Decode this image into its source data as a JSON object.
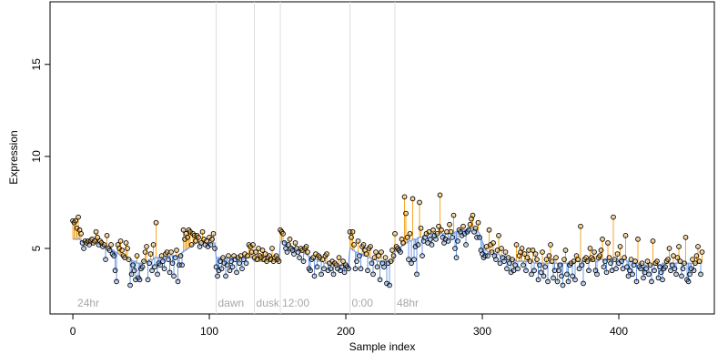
{
  "chart_data": {
    "type": "line",
    "xlabel": "Sample index",
    "ylabel": "Expression",
    "xlim": [
      -16.7,
      470
    ],
    "ylim": [
      1.44,
      18.4
    ],
    "xticks": [
      0,
      100,
      200,
      300,
      400
    ],
    "yticks": [
      5,
      10,
      15
    ],
    "above_color": "#f5a623",
    "below_color": "#6f9de8",
    "line_color": "#6f9de8",
    "vlines": [
      105,
      133,
      152,
      203,
      236
    ],
    "annotations": [
      {
        "label": "24hr",
        "x": 2
      },
      {
        "label": "dawn",
        "x": 105
      },
      {
        "label": "dusk",
        "x": 133
      },
      {
        "label": "12:00",
        "x": 152
      },
      {
        "label": "0:00",
        "x": 203
      },
      {
        "label": "48hr",
        "x": 236
      }
    ],
    "series": [
      {
        "values": [
          6.5,
          6.4,
          6.5,
          6.1,
          6.7,
          6.0,
          5.8,
          5.3,
          5.0,
          5.4,
          5.3,
          5.4,
          5.2,
          5.4,
          5.5,
          5.3,
          5.4,
          5.9,
          5.6,
          5.2,
          5.4,
          5.3,
          5.1,
          5.2,
          4.4,
          5.7,
          5.0,
          4.9,
          5.2,
          4.7,
          4.6,
          3.8,
          3.2,
          5.2,
          5.0,
          5.4,
          4.9,
          4.6,
          4.5,
          5.3,
          5.0,
          4.4,
          3.0,
          3.6,
          4.1,
          3.8,
          3.3,
          4.6,
          3.4,
          3.3,
          3.9,
          4.0,
          4.3,
          4.8,
          5.1,
          3.3,
          4.2,
          4.7,
          3.8,
          5.2,
          4.0,
          6.4,
          3.6,
          4.2,
          4.1,
          4.6,
          4.3,
          3.9,
          4.7,
          4.8,
          4.4,
          3.7,
          4.8,
          4.2,
          3.5,
          4.5,
          4.9,
          3.2,
          4.1,
          4.6,
          4.1,
          6.0,
          5.5,
          5.8,
          5.6,
          6.0,
          5.9,
          5.2,
          5.8,
          5.7,
          5.4,
          5.7,
          5.6,
          5.1,
          5.3,
          5.9,
          5.5,
          5.2,
          5.4,
          5.1,
          5.6,
          5.2,
          5.5,
          5.8,
          5.0,
          4.0,
          3.5,
          3.8,
          4.3,
          3.9,
          4.5,
          4.2,
          3.5,
          4.1,
          4.6,
          3.8,
          4.3,
          4.0,
          4.6,
          4.4,
          3.7,
          4.5,
          4.2,
          4.6,
          3.9,
          4.4,
          4.7,
          4.2,
          4.6,
          5.2,
          5.1,
          4.8,
          5.2,
          4.5,
          4.8,
          4.4,
          5.0,
          4.6,
          4.5,
          4.9,
          4.4,
          4.7,
          4.3,
          4.5,
          4.6,
          4.4,
          5.0,
          4.3,
          4.5,
          4.6,
          4.4,
          4.3,
          6.0,
          5.9,
          5.8,
          5.3,
          5.0,
          4.8,
          5.2,
          5.5,
          5.0,
          4.9,
          4.7,
          5.3,
          5.0,
          4.8,
          4.5,
          5.0,
          4.9,
          4.3,
          5.0,
          5.1,
          4.8,
          3.9,
          3.8,
          4.4,
          4.5,
          3.5,
          4.7,
          4.0,
          4.6,
          4.5,
          3.6,
          4.4,
          3.9,
          4.6,
          4.7,
          3.8,
          4.2,
          3.9,
          4.3,
          3.6,
          4.2,
          4.1,
          3.9,
          4.5,
          3.8,
          4.0,
          4.3,
          3.7,
          4.1,
          4.0,
          3.9,
          5.9,
          5.6,
          5.9,
          5.2,
          3.9,
          4.3,
          5.4,
          4.6,
          3.9,
          5.1,
          5.2,
          4.9,
          4.7,
          3.8,
          5.0,
          5.1,
          4.2,
          3.6,
          4.5,
          4.8,
          4.0,
          4.6,
          3.3,
          4.8,
          4.2,
          4.0,
          4.5,
          3.1,
          4.2,
          3.0,
          4.3,
          4.9,
          4.6,
          5.8,
          5.1,
          5.0,
          4.9,
          4.8,
          5.5,
          5.3,
          7.8,
          6.9,
          5.6,
          4.4,
          5.8,
          4.2,
          7.7,
          4.4,
          5.1,
          3.6,
          5.2,
          7.5,
          6.1,
          4.6,
          5.4,
          5.6,
          5.8,
          5.3,
          5.9,
          5.5,
          5.2,
          6.0,
          5.7,
          5.5,
          5.8,
          6.2,
          7.9,
          6.0,
          5.6,
          5.3,
          5.5,
          5.9,
          5.4,
          6.3,
          5.9,
          5.6,
          6.8,
          5.0,
          4.5,
          5.4,
          6.0,
          5.9,
          5.7,
          6.2,
          5.8,
          5.2,
          5.9,
          6.0,
          6.3,
          6.6,
          6.8,
          5.9,
          6.1,
          5.6,
          6.4,
          5.6,
          4.9,
          4.7,
          4.5,
          4.6,
          5.1,
          4.6,
          6.0,
          5.2,
          4.8,
          5.3,
          4.6,
          4.4,
          4.9,
          5.7,
          4.2,
          5.0,
          4.5,
          4.3,
          4.8,
          3.9,
          4.5,
          4.2,
          3.7,
          4.4,
          3.8,
          4.1,
          5.2,
          3.9,
          4.6,
          4.8,
          5.0,
          4.1,
          4.7,
          3.8,
          4.5,
          4.9,
          4.3,
          3.6,
          4.9,
          3.8,
          4.7,
          4.4,
          3.3,
          4.1,
          3.7,
          4.8,
          3.5,
          4.0,
          4.4,
          3.2,
          4.6,
          5.2,
          4.3,
          3.4,
          3.8,
          4.5,
          3.2,
          3.8,
          4.1,
          3.5,
          3.0,
          4.4,
          4.9,
          3.6,
          3.2,
          4.1,
          4.2,
          3.5,
          4.3,
          3.3,
          4.6,
          4.4,
          3.9,
          6.2,
          4.1,
          3.1,
          4.4,
          4.5,
          4.3,
          3.8,
          5.0,
          4.5,
          4.4,
          4.8,
          3.8,
          3.6,
          4.5,
          4.6,
          4.9,
          5.5,
          4.0,
          4.3,
          3.7,
          5.3,
          4.5,
          4.2,
          3.8,
          6.7,
          4.4,
          3.9,
          4.7,
          4.2,
          5.1,
          4.3,
          3.9,
          4.5,
          5.7,
          4.0,
          3.5,
          3.8,
          4.4,
          3.6,
          4.1,
          4.3,
          3.2,
          5.5,
          4.0,
          3.9,
          4.2,
          3.4,
          3.7,
          3.9,
          4.3,
          3.6,
          4.1,
          3.2,
          5.4,
          3.8,
          4.2,
          4.3,
          3.4,
          4.0,
          3.7,
          3.3,
          3.9,
          4.0,
          4.3,
          4.4,
          5.0,
          3.8,
          4.1,
          4.6,
          3.9,
          3.6,
          4.5,
          5.1,
          4.3,
          3.5,
          3.9,
          4.2,
          5.6,
          3.3,
          3.2,
          3.6,
          3.9,
          4.4,
          3.8,
          4.2,
          4.6,
          5.1,
          4.3,
          3.6,
          4.8
        ]
      },
      {
        "values": [
          5.5,
          5.5,
          5.5,
          5.5,
          5.5,
          5.5,
          5.4,
          5.4,
          5.3,
          5.3,
          5.3,
          5.3,
          5.3,
          5.3,
          5.3,
          5.3,
          5.3,
          5.3,
          5.3,
          5.3,
          5.2,
          5.2,
          5.2,
          5.1,
          5.1,
          5.1,
          5.0,
          5.0,
          5.0,
          4.9,
          4.9,
          4.8,
          4.8,
          4.7,
          4.7,
          4.6,
          4.6,
          4.6,
          4.5,
          4.5,
          4.5,
          4.4,
          4.4,
          4.4,
          4.3,
          4.3,
          4.3,
          4.2,
          4.2,
          4.2,
          4.2,
          4.2,
          4.3,
          4.3,
          4.3,
          4.3,
          4.4,
          4.4,
          4.4,
          4.4,
          4.5,
          4.5,
          4.5,
          4.5,
          4.5,
          4.5,
          4.5,
          4.5,
          4.5,
          4.5,
          4.6,
          4.6,
          4.6,
          4.6,
          4.6,
          4.6,
          4.6,
          4.6,
          4.6,
          4.6,
          4.8,
          4.8,
          4.9,
          4.9,
          5.0,
          5.0,
          5.1,
          5.1,
          5.2,
          5.2,
          5.3,
          5.3,
          5.3,
          5.3,
          5.3,
          5.3,
          5.3,
          5.3,
          5.3,
          5.3,
          5.3,
          5.3,
          5.3,
          5.3,
          5.3,
          4.5,
          4.5,
          4.5,
          4.5,
          4.5,
          4.5,
          4.5,
          4.5,
          4.5,
          4.5,
          4.5,
          4.5,
          4.5,
          4.5,
          4.5,
          4.5,
          4.5,
          4.5,
          4.5,
          4.5,
          4.5,
          4.5,
          4.5,
          4.5,
          4.5,
          4.5,
          4.5,
          4.5,
          4.3,
          4.3,
          4.3,
          4.3,
          4.3,
          4.3,
          4.3,
          4.3,
          4.3,
          4.3,
          4.3,
          4.3,
          4.3,
          4.3,
          4.3,
          4.3,
          4.3,
          4.3,
          4.3,
          5.3,
          5.4,
          5.4,
          5.4,
          5.3,
          5.3,
          5.2,
          5.2,
          5.1,
          5.1,
          5.0,
          5.0,
          5.0,
          4.9,
          4.9,
          4.9,
          4.8,
          4.8,
          4.7,
          4.7,
          4.6,
          4.6,
          4.5,
          4.5,
          4.5,
          4.4,
          4.4,
          4.4,
          4.3,
          4.3,
          4.3,
          4.3,
          4.2,
          4.2,
          4.2,
          4.2,
          4.1,
          4.1,
          4.1,
          4.1,
          4.1,
          4.1,
          4.1,
          4.1,
          4.1,
          4.1,
          4.1,
          4.1,
          4.1,
          4.1,
          4.1,
          5.0,
          5.0,
          4.9,
          4.9,
          4.8,
          4.8,
          4.8,
          4.7,
          4.7,
          4.7,
          4.6,
          4.6,
          4.6,
          4.5,
          4.5,
          4.5,
          4.4,
          4.4,
          4.4,
          4.4,
          4.3,
          4.3,
          4.3,
          4.3,
          4.3,
          4.3,
          4.3,
          4.3,
          4.3,
          4.3,
          4.3,
          4.3,
          4.3,
          4.8,
          4.9,
          5.0,
          5.0,
          5.1,
          5.1,
          5.2,
          5.2,
          5.3,
          5.3,
          5.4,
          5.4,
          5.4,
          5.5,
          5.5,
          5.5,
          5.5,
          5.6,
          5.6,
          5.6,
          5.6,
          5.7,
          5.7,
          5.7,
          5.7,
          5.8,
          5.8,
          5.8,
          5.8,
          5.8,
          5.8,
          5.8,
          5.8,
          5.8,
          5.8,
          5.8,
          5.8,
          5.8,
          5.8,
          5.8,
          5.8,
          5.8,
          5.8,
          5.8,
          5.9,
          5.9,
          5.9,
          5.9,
          6.0,
          6.0,
          6.0,
          6.0,
          6.0,
          6.0,
          6.1,
          6.1,
          6.1,
          6.1,
          6.1,
          6.1,
          6.0,
          5.9,
          5.8,
          5.6,
          5.4,
          5.2,
          5.0,
          4.9,
          4.8,
          4.8,
          4.8,
          4.8,
          4.8,
          4.7,
          4.7,
          4.7,
          4.7,
          4.6,
          4.6,
          4.6,
          4.6,
          4.5,
          4.5,
          4.5,
          4.5,
          4.4,
          4.4,
          4.4,
          4.4,
          4.3,
          4.3,
          4.3,
          4.3,
          4.3,
          4.3,
          4.3,
          4.3,
          4.3,
          4.3,
          4.3,
          4.3,
          4.3,
          4.2,
          4.2,
          4.2,
          4.2,
          4.2,
          4.2,
          4.2,
          4.2,
          4.2,
          4.2,
          4.2,
          4.2,
          4.2,
          4.2,
          4.2,
          4.2,
          4.2,
          4.2,
          4.2,
          4.2,
          4.2,
          4.2,
          4.2,
          4.2,
          4.2,
          4.2,
          4.2,
          4.2,
          4.2,
          4.2,
          4.3,
          4.3,
          4.3,
          4.3,
          4.3,
          4.3,
          4.3,
          4.3,
          4.3,
          4.3,
          4.3,
          4.3,
          4.3,
          4.3,
          4.3,
          4.3,
          4.3,
          4.3,
          4.4,
          4.4,
          4.4,
          4.4,
          4.4,
          4.4,
          4.4,
          4.4,
          4.4,
          4.4,
          4.4,
          4.4,
          4.4,
          4.4,
          4.4,
          4.4,
          4.4,
          4.4,
          4.4,
          4.4,
          4.3,
          4.3,
          4.3,
          4.3,
          4.2,
          4.2,
          4.2,
          4.2,
          4.2,
          4.2,
          4.2,
          4.2,
          4.1,
          4.1,
          4.1,
          4.1,
          4.1,
          4.1,
          4.1,
          4.1,
          4.1,
          4.1,
          4.1,
          4.1,
          4.1,
          4.1,
          4.2,
          4.2,
          4.2,
          4.2,
          4.2,
          4.2,
          4.2,
          4.2,
          4.2,
          4.2,
          4.2,
          4.2,
          4.2,
          4.2,
          4.2,
          4.2,
          4.2,
          4.2,
          4.2,
          4.2,
          4.2,
          4.2,
          4.2,
          4.2,
          4.2,
          4.2,
          4.2,
          4.2,
          4.2,
          4.2
        ]
      }
    ]
  }
}
